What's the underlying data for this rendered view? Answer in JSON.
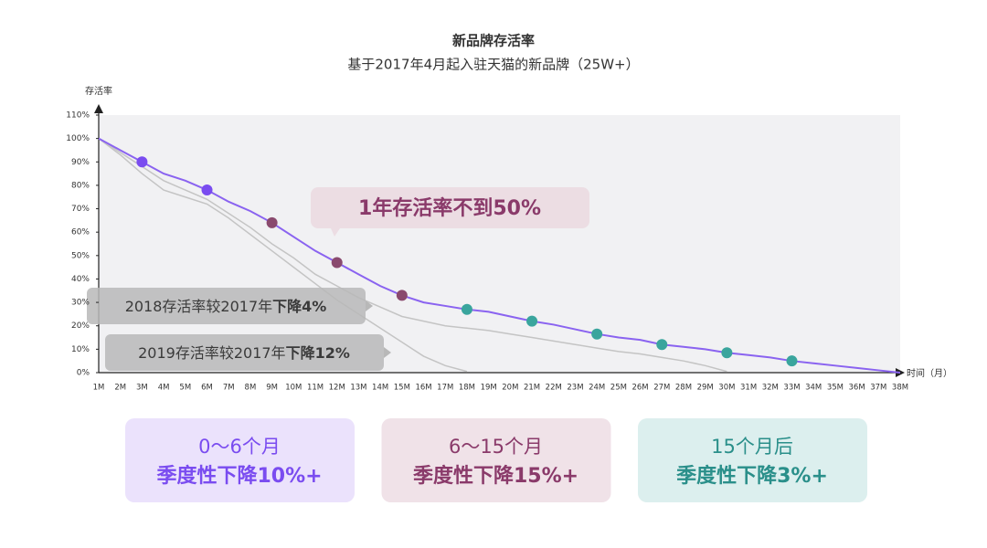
{
  "chart_data": {
    "type": "line",
    "title": "新品牌存活率",
    "subtitle": "基于2017年4月起入驻天猫的新品牌（25W+）",
    "y_label": "存活率",
    "x_label": "时间（月）",
    "categories": [
      "1M",
      "2M",
      "3M",
      "4M",
      "5M",
      "6M",
      "7M",
      "8M",
      "9M",
      "10M",
      "11M",
      "12M",
      "13M",
      "14M",
      "15M",
      "16M",
      "17M",
      "18M",
      "19M",
      "20M",
      "21M",
      "22M",
      "23M",
      "24M",
      "25M",
      "26M",
      "27M",
      "28M",
      "29M",
      "30M",
      "31M",
      "32M",
      "33M",
      "34M",
      "35M",
      "36M",
      "37M",
      "38M"
    ],
    "series": [
      {
        "color": "#8a63f0",
        "values": [
          100,
          95,
          90,
          85,
          82,
          78,
          73,
          69,
          64,
          58,
          52,
          47,
          42,
          37,
          33,
          30,
          28.5,
          27,
          26,
          24,
          22,
          20.5,
          18.5,
          16.5,
          15,
          14,
          12,
          11,
          10,
          8.5,
          7.5,
          6.5,
          5,
          4,
          3,
          2,
          1,
          0
        ],
        "marker_colors": [
          null,
          null,
          "#7a4cf0",
          null,
          null,
          "#7a4cf0",
          null,
          null,
          "#8a4a6e",
          null,
          null,
          "#8a4a6e",
          null,
          null,
          "#8a4a6e",
          null,
          null,
          "#3aa59d",
          null,
          null,
          "#3aa59d",
          null,
          null,
          "#3aa59d",
          null,
          null,
          "#3aa59d",
          null,
          null,
          "#3aa59d",
          null,
          null,
          "#3aa59d",
          null,
          null,
          null,
          null,
          null
        ]
      },
      {
        "color": "#c4c4c4",
        "values": [
          100,
          94,
          88,
          82,
          78,
          74,
          68,
          62,
          55,
          49,
          42,
          37,
          32,
          28,
          24,
          22,
          20,
          19,
          18,
          16.5,
          15,
          13.5,
          12,
          10.5,
          9,
          8,
          6.5,
          5,
          3,
          0.5,
          null,
          null,
          null,
          null,
          null,
          null,
          null,
          null
        ]
      },
      {
        "color": "#c4c4c4",
        "values": [
          100,
          93,
          85,
          78,
          75,
          72,
          66,
          59,
          52,
          45,
          38,
          31,
          25,
          19,
          13,
          7,
          3,
          0.5,
          null,
          null,
          null,
          null,
          null,
          null,
          null,
          null,
          null,
          null,
          null,
          null,
          null,
          null,
          null,
          null,
          null,
          null,
          null,
          null
        ]
      }
    ],
    "ylim": [
      0,
      110
    ],
    "yticks": [
      {
        "value": 0,
        "label": "0%"
      },
      {
        "value": 10,
        "label": "10%"
      },
      {
        "value": 20,
        "label": "20%"
      },
      {
        "value": 30,
        "label": "30%"
      },
      {
        "value": 40,
        "label": "40%"
      },
      {
        "value": 50,
        "label": "50%"
      },
      {
        "value": 60,
        "label": "60%"
      },
      {
        "value": 70,
        "label": "70%"
      },
      {
        "value": 80,
        "label": "80%"
      },
      {
        "value": 90,
        "label": "90%"
      },
      {
        "value": 100,
        "label": "100%"
      },
      {
        "value": 110,
        "label": "110%"
      }
    ],
    "callout": "1年存活率不到50%",
    "notes": [
      {
        "text": "2018存活率较2017年",
        "emphasis": "下降4%"
      },
      {
        "text": "2019存活率较2017年",
        "emphasis": "下降12%"
      }
    ],
    "phases": [
      {
        "title": "0～6个月",
        "text": "季度性下降10%+",
        "color": "#7a4cf0",
        "background": "#ebe2fc"
      },
      {
        "title": "6～15个月",
        "text": "季度性下降15%+",
        "color": "#8a3a6a",
        "background": "#f0e2e8"
      },
      {
        "title": "15个月后",
        "text": "季度性下降3%+",
        "color": "#2a8f8a",
        "background": "#dcefee"
      }
    ]
  }
}
